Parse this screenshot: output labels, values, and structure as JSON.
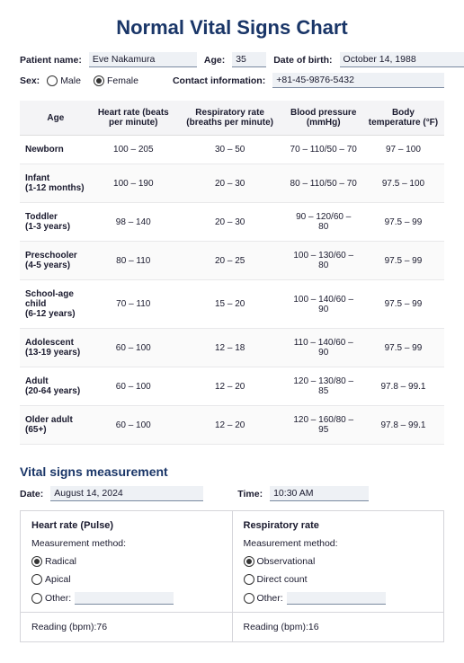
{
  "title": "Normal Vital Signs Chart",
  "patient": {
    "name_label": "Patient name:",
    "name_value": "Eve Nakamura",
    "age_label": "Age:",
    "age_value": "35",
    "dob_label": "Date of birth:",
    "dob_value": "October 14, 1988",
    "sex_label": "Sex:",
    "male_label": "Male",
    "female_label": "Female",
    "contact_label": "Contact information:",
    "contact_value": "+81-45-9876-5432"
  },
  "table": {
    "columns": [
      "Age",
      "Heart rate (beats per minute)",
      "Respiratory rate (breaths per minute)",
      "Blood pressure (mmHg)",
      "Body temperature (°F)"
    ],
    "rows": [
      [
        "Newborn",
        "100 – 205",
        "30 – 50",
        "70 – 110/50 – 70",
        "97 – 100"
      ],
      [
        "Infant\n(1-12 months)",
        "100 – 190",
        "20 – 30",
        "80 – 110/50 – 70",
        "97.5 – 100"
      ],
      [
        "Toddler\n(1-3 years)",
        "98 – 140",
        "20 – 30",
        "90 – 120/60 – 80",
        "97.5 – 99"
      ],
      [
        "Preschooler\n(4-5 years)",
        "80 – 110",
        "20 – 25",
        "100 – 130/60 – 80",
        "97.5 – 99"
      ],
      [
        "School-age child\n(6-12 years)",
        "70 – 110",
        "15 – 20",
        "100 – 140/60 – 90",
        "97.5 – 99"
      ],
      [
        "Adolescent\n(13-19 years)",
        "60 – 100",
        "12 – 18",
        "110 – 140/60 – 90",
        "97.5 – 99"
      ],
      [
        "Adult\n(20-64 years)",
        "60 – 100",
        "12 – 20",
        "120 – 130/80 – 85",
        "97.8 – 99.1"
      ],
      [
        "Older adult\n(65+)",
        "60 – 100",
        "12 – 20",
        "120 – 160/80 – 95",
        "97.8 – 99.1"
      ]
    ]
  },
  "measurement": {
    "section_title": "Vital signs measurement",
    "date_label": "Date:",
    "date_value": "August 14, 2024",
    "time_label": "Time:",
    "time_value": "10:30 AM",
    "hr": {
      "title": "Heart rate (Pulse)",
      "method_label": "Measurement method:",
      "opt1": "Radical",
      "opt2": "Apical",
      "opt3": "Other:",
      "reading_label": "Reading (bpm):",
      "reading_value": "76"
    },
    "rr": {
      "title": "Respiratory rate",
      "method_label": "Measurement method:",
      "opt1": "Observational",
      "opt2": "Direct count",
      "opt3": "Other:",
      "reading_label": "Reading (bpm):",
      "reading_value": "16"
    }
  }
}
